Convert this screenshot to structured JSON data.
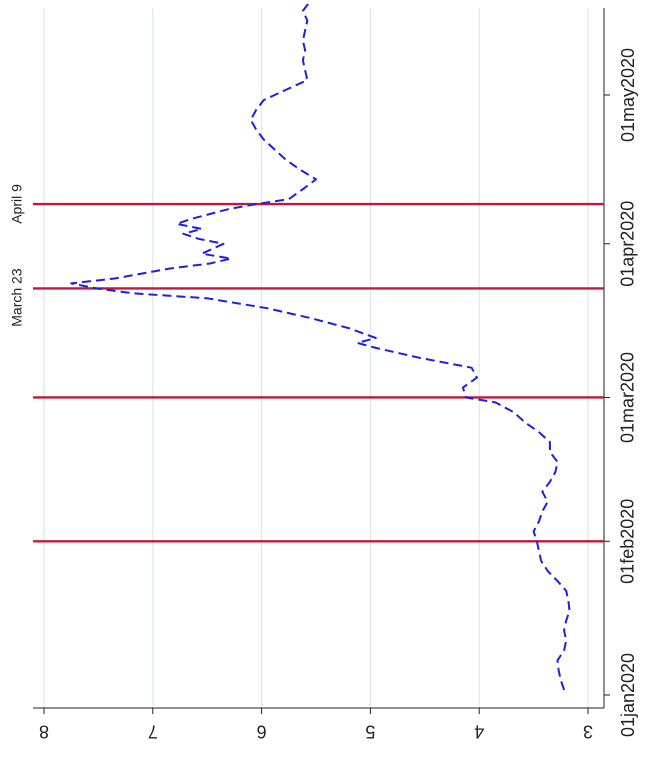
{
  "chart_data": {
    "type": "line",
    "orientation": "rotated-90",
    "title": "",
    "xlabel": "",
    "ylabel": "",
    "x_ticks": [
      "01jan2020",
      "01feb2020",
      "01mar2020",
      "01apr2020",
      "01may2020"
    ],
    "y_ticks": [
      "3",
      "4",
      "5",
      "6",
      "7",
      "8"
    ],
    "ylim": [
      3,
      8.1
    ],
    "xlim": [
      "2019-12-28",
      "2020-05-20"
    ],
    "grid": true,
    "series": [
      {
        "color": "#1f1fe0",
        "line_style": "dashed",
        "points": [
          [
            "2020-01-02",
            3.22
          ],
          [
            "2020-01-04",
            3.25
          ],
          [
            "2020-01-06",
            3.27
          ],
          [
            "2020-01-08",
            3.28
          ],
          [
            "2020-01-10",
            3.22
          ],
          [
            "2020-01-12",
            3.2
          ],
          [
            "2020-01-14",
            3.22
          ],
          [
            "2020-01-16",
            3.2
          ],
          [
            "2020-01-18",
            3.17
          ],
          [
            "2020-01-20",
            3.18
          ],
          [
            "2020-01-22",
            3.2
          ],
          [
            "2020-01-24",
            3.28
          ],
          [
            "2020-01-26",
            3.37
          ],
          [
            "2020-01-28",
            3.43
          ],
          [
            "2020-01-30",
            3.45
          ],
          [
            "2020-02-01",
            3.47
          ],
          [
            "2020-02-03",
            3.5
          ],
          [
            "2020-02-05",
            3.45
          ],
          [
            "2020-02-07",
            3.42
          ],
          [
            "2020-02-09",
            3.37
          ],
          [
            "2020-02-11",
            3.42
          ],
          [
            "2020-02-13",
            3.35
          ],
          [
            "2020-02-15",
            3.3
          ],
          [
            "2020-02-17",
            3.28
          ],
          [
            "2020-02-19",
            3.35
          ],
          [
            "2020-02-21",
            3.35
          ],
          [
            "2020-02-23",
            3.45
          ],
          [
            "2020-02-25",
            3.58
          ],
          [
            "2020-02-27",
            3.68
          ],
          [
            "2020-02-29",
            3.85
          ],
          [
            "2020-03-01",
            4.12
          ],
          [
            "2020-03-03",
            4.15
          ],
          [
            "2020-03-05",
            4.02
          ],
          [
            "2020-03-07",
            4.07
          ],
          [
            "2020-03-09",
            4.55
          ],
          [
            "2020-03-11",
            4.95
          ],
          [
            "2020-03-12",
            5.12
          ],
          [
            "2020-03-13",
            4.95
          ],
          [
            "2020-03-15",
            5.2
          ],
          [
            "2020-03-17",
            5.55
          ],
          [
            "2020-03-19",
            5.95
          ],
          [
            "2020-03-21",
            6.5
          ],
          [
            "2020-03-22",
            7.18
          ],
          [
            "2020-03-23",
            7.52
          ],
          [
            "2020-03-24",
            7.75
          ],
          [
            "2020-03-25",
            7.35
          ],
          [
            "2020-03-27",
            6.85
          ],
          [
            "2020-03-28",
            6.48
          ],
          [
            "2020-03-29",
            6.28
          ],
          [
            "2020-03-30",
            6.55
          ],
          [
            "2020-04-01",
            6.35
          ],
          [
            "2020-04-02",
            6.58
          ],
          [
            "2020-04-03",
            6.72
          ],
          [
            "2020-04-04",
            6.55
          ],
          [
            "2020-04-05",
            6.78
          ],
          [
            "2020-04-06",
            6.65
          ],
          [
            "2020-04-08",
            6.3
          ],
          [
            "2020-04-09",
            6.05
          ],
          [
            "2020-04-10",
            5.75
          ],
          [
            "2020-04-12",
            5.62
          ],
          [
            "2020-04-14",
            5.5
          ],
          [
            "2020-04-16",
            5.65
          ],
          [
            "2020-04-18",
            5.78
          ],
          [
            "2020-04-20",
            5.88
          ],
          [
            "2020-04-22",
            5.98
          ],
          [
            "2020-04-24",
            6.05
          ],
          [
            "2020-04-26",
            6.1
          ],
          [
            "2020-04-28",
            6.05
          ],
          [
            "2020-04-30",
            5.98
          ],
          [
            "2020-05-02",
            5.78
          ],
          [
            "2020-05-04",
            5.58
          ],
          [
            "2020-05-06",
            5.6
          ],
          [
            "2020-05-08",
            5.62
          ],
          [
            "2020-05-10",
            5.6
          ],
          [
            "2020-05-12",
            5.62
          ],
          [
            "2020-05-14",
            5.6
          ],
          [
            "2020-05-16",
            5.58
          ],
          [
            "2020-05-18",
            5.62
          ],
          [
            "2020-05-20",
            5.55
          ]
        ]
      }
    ],
    "reference_lines": [
      {
        "x": "2020-02-01",
        "color": "#c2183a",
        "label": ""
      },
      {
        "x": "2020-03-01",
        "color": "#c2183a",
        "label": ""
      },
      {
        "x": "2020-03-23",
        "color": "#c2183a",
        "label": "March 23"
      },
      {
        "x": "2020-04-09",
        "color": "#c2183a",
        "label": "April 9"
      }
    ]
  }
}
